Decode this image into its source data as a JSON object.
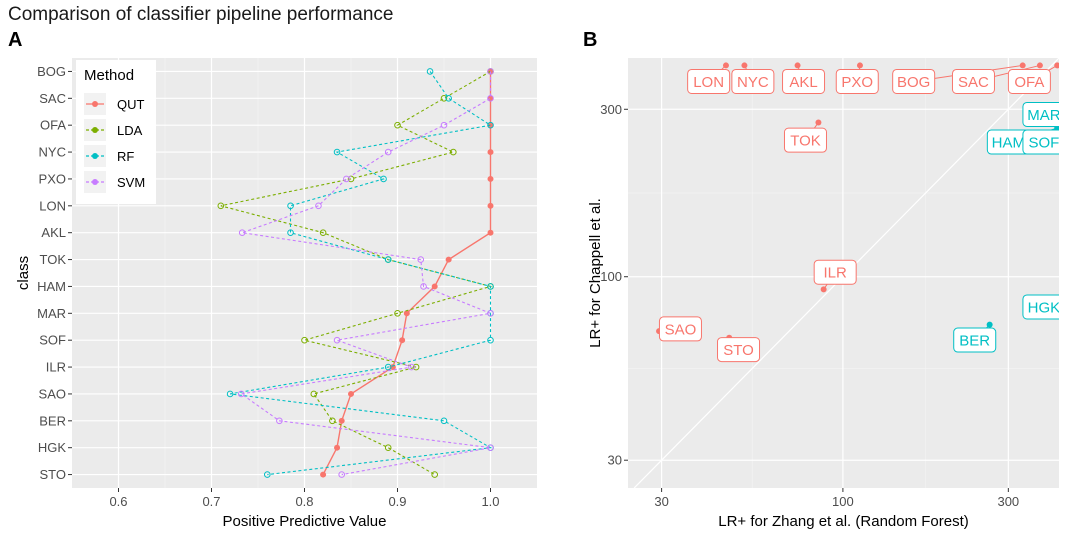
{
  "figure": {
    "title": "Comparison of classifier pipeline performance",
    "panel_a": "A",
    "panel_b": "B"
  },
  "chart_data": [
    {
      "type": "line",
      "panel": "A",
      "xlabel": "Positive Predictive Value",
      "ylabel": "class",
      "xlim": [
        0.55,
        1.05
      ],
      "xticks": [
        0.6,
        0.7,
        0.8,
        0.9,
        1.0
      ],
      "xtick_labels": [
        "0.6",
        "0.7",
        "0.8",
        "0.9",
        "1.0"
      ],
      "categories": [
        "BOG",
        "SAC",
        "OFA",
        "NYC",
        "PXO",
        "LON",
        "AKL",
        "TOK",
        "HAM",
        "MAR",
        "SOF",
        "ILR",
        "SAO",
        "BER",
        "HGK",
        "STO"
      ],
      "legend": {
        "title": "Method",
        "position": "top-left"
      },
      "series": [
        {
          "name": "QUT",
          "color": "#F8766D",
          "style": "solid",
          "filled": true,
          "values": [
            1.0,
            1.0,
            1.0,
            1.0,
            1.0,
            1.0,
            1.0,
            0.955,
            0.94,
            0.91,
            0.905,
            0.895,
            0.85,
            0.84,
            0.835,
            0.82
          ]
        },
        {
          "name": "LDA",
          "color": "#7CAE00",
          "style": "dotted",
          "filled": false,
          "values": [
            1.0,
            0.95,
            0.9,
            0.96,
            0.85,
            0.71,
            0.82,
            0.89,
            1.0,
            0.9,
            0.8,
            0.92,
            0.81,
            0.83,
            0.89,
            0.94
          ]
        },
        {
          "name": "RF",
          "color": "#00BFC4",
          "style": "dotted",
          "filled": false,
          "values": [
            0.935,
            0.955,
            1.0,
            0.835,
            0.885,
            0.785,
            0.785,
            0.89,
            1.0,
            1.0,
            1.0,
            0.89,
            0.72,
            0.95,
            1.0,
            0.76
          ]
        },
        {
          "name": "SVM",
          "color": "#C77CFF",
          "style": "dotted",
          "filled": false,
          "values": [
            1.0,
            1.0,
            0.95,
            0.89,
            0.845,
            0.815,
            0.733,
            0.925,
            0.928,
            1.0,
            0.835,
            0.915,
            0.732,
            0.773,
            1.0,
            0.84
          ]
        }
      ]
    },
    {
      "type": "scatter",
      "panel": "B",
      "scale": "log",
      "xlabel": "LR+ for Zhang et al. (Random Forest)",
      "ylabel": "LR+ for Chappell et al.",
      "xlim": [
        24,
        420
      ],
      "ylim": [
        25,
        420
      ],
      "xticks": [
        30,
        100,
        300
      ],
      "yticks": [
        30,
        100,
        300
      ],
      "xtick_labels": [
        "30",
        "100",
        "300"
      ],
      "ytick_labels": [
        "30",
        "100",
        "300"
      ],
      "reference_line": "y = x",
      "points": [
        {
          "label": "LON",
          "x": 46,
          "y": 400,
          "color": "#F8766D"
        },
        {
          "label": "NYC",
          "x": 52,
          "y": 400,
          "color": "#F8766D"
        },
        {
          "label": "AKL",
          "x": 74,
          "y": 400,
          "color": "#F8766D"
        },
        {
          "label": "PXO",
          "x": 112,
          "y": 400,
          "color": "#F8766D"
        },
        {
          "label": "BOG",
          "x": 330,
          "y": 400,
          "color": "#F8766D"
        },
        {
          "label": "SAC",
          "x": 370,
          "y": 400,
          "color": "#F8766D"
        },
        {
          "label": "OFA",
          "x": 415,
          "y": 400,
          "color": "#F8766D"
        },
        {
          "label": "TOK",
          "x": 85,
          "y": 275,
          "color": "#F8766D"
        },
        {
          "label": "ILR",
          "x": 88,
          "y": 92,
          "color": "#F8766D"
        },
        {
          "label": "SAO",
          "x": 29.5,
          "y": 70,
          "color": "#F8766D"
        },
        {
          "label": "STO",
          "x": 47,
          "y": 67,
          "color": "#F8766D"
        },
        {
          "label": "MAR",
          "x": 420,
          "y": 290,
          "color": "#00BFC4"
        },
        {
          "label": "HAM",
          "x": 415,
          "y": 265,
          "color": "#00BFC4"
        },
        {
          "label": "SOF",
          "x": 420,
          "y": 265,
          "color": "#00BFC4"
        },
        {
          "label": "HGK",
          "x": 420,
          "y": 81,
          "color": "#00BFC4"
        },
        {
          "label": "BER",
          "x": 265,
          "y": 73,
          "color": "#00BFC4"
        }
      ],
      "text_labels": [
        {
          "label": "LON",
          "x": 41,
          "y": 360,
          "color": "#F8766D"
        },
        {
          "label": "NYC",
          "x": 55,
          "y": 360,
          "color": "#F8766D"
        },
        {
          "label": "AKL",
          "x": 77,
          "y": 360,
          "color": "#F8766D"
        },
        {
          "label": "PXO",
          "x": 110,
          "y": 360,
          "color": "#F8766D"
        },
        {
          "label": "BOG",
          "x": 160,
          "y": 360,
          "color": "#F8766D"
        },
        {
          "label": "SAC",
          "x": 238,
          "y": 360,
          "color": "#F8766D"
        },
        {
          "label": "OFA",
          "x": 345,
          "y": 360,
          "color": "#F8766D"
        },
        {
          "label": "TOK",
          "x": 78,
          "y": 245,
          "color": "#F8766D"
        },
        {
          "label": "ILR",
          "x": 95,
          "y": 103,
          "color": "#F8766D"
        },
        {
          "label": "SAO",
          "x": 34,
          "y": 71,
          "color": "#F8766D"
        },
        {
          "label": "STO",
          "x": 50,
          "y": 62,
          "color": "#F8766D"
        },
        {
          "label": "MAR",
          "x": 380,
          "y": 290,
          "color": "#00BFC4"
        },
        {
          "label": "HAM",
          "x": 300,
          "y": 242,
          "color": "#00BFC4"
        },
        {
          "label": "SOF",
          "x": 380,
          "y": 242,
          "color": "#00BFC4"
        },
        {
          "label": "HGK",
          "x": 380,
          "y": 82,
          "color": "#00BFC4"
        },
        {
          "label": "BER",
          "x": 240,
          "y": 66,
          "color": "#00BFC4"
        }
      ]
    }
  ]
}
